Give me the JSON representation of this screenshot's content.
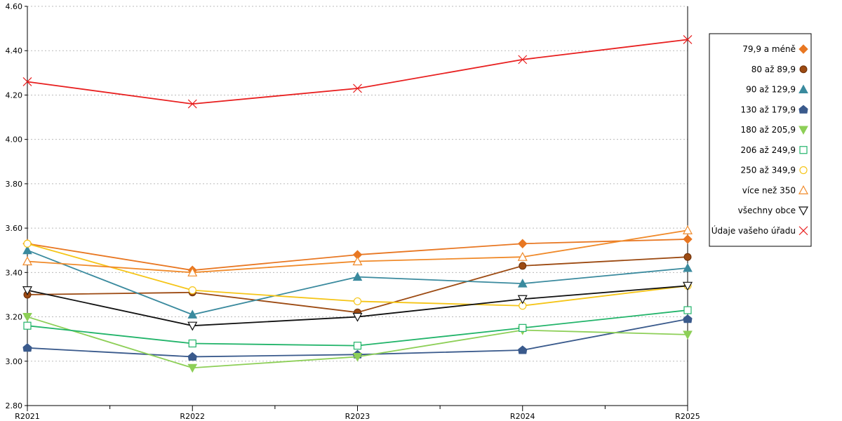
{
  "chart_data": {
    "type": "line",
    "title": "",
    "xlabel": "",
    "ylabel": "",
    "categories": [
      "R2021",
      "R2022",
      "R2023",
      "R2024",
      "R2025"
    ],
    "ylim": [
      2.8,
      4.6
    ],
    "y_ticks": [
      "2.80",
      "3.00",
      "3.20",
      "3.40",
      "3.60",
      "3.80",
      "4.00",
      "4.20",
      "4.40",
      "4.60"
    ],
    "grid": "horizontal dotted",
    "legend_position": "right",
    "series": [
      {
        "name": "79,9 a méně",
        "color": "#e87722",
        "marker": "diamond-filled",
        "values": [
          3.53,
          3.41,
          3.48,
          3.53,
          3.55
        ]
      },
      {
        "name": "80 až 89,9",
        "color": "#9c4a12",
        "marker": "circle-filled",
        "values": [
          3.3,
          3.31,
          3.22,
          3.43,
          3.47
        ]
      },
      {
        "name": "90 až 129,9",
        "color": "#3a8a9e",
        "marker": "triangle-up-filled",
        "values": [
          3.5,
          3.21,
          3.38,
          3.35,
          3.42
        ]
      },
      {
        "name": "130 až 179,9",
        "color": "#3a5a8c",
        "marker": "house-filled",
        "values": [
          3.06,
          3.02,
          3.03,
          3.05,
          3.19
        ]
      },
      {
        "name": "180 až 205,9",
        "color": "#8dcf57",
        "marker": "triangle-down-filled",
        "values": [
          3.2,
          2.97,
          3.02,
          3.14,
          3.12
        ]
      },
      {
        "name": "206 až 249,9",
        "color": "#22b46a",
        "marker": "square-open",
        "values": [
          3.16,
          3.08,
          3.07,
          3.15,
          3.23
        ]
      },
      {
        "name": "250 až 349,9",
        "color": "#f5c518",
        "marker": "circle-open",
        "values": [
          3.53,
          3.32,
          3.27,
          3.25,
          3.34
        ]
      },
      {
        "name": "více než 350",
        "color": "#f08a2a",
        "marker": "triangle-up-open",
        "values": [
          3.45,
          3.4,
          3.45,
          3.47,
          3.59
        ]
      },
      {
        "name": "všechny obce",
        "color": "#111111",
        "marker": "triangle-down-open",
        "values": [
          3.32,
          3.16,
          3.2,
          3.28,
          3.34
        ]
      },
      {
        "name": "Údaje vašeho úřadu",
        "color": "#e82020",
        "marker": "x",
        "values": [
          4.26,
          4.16,
          4.23,
          4.36,
          4.45
        ]
      }
    ]
  }
}
